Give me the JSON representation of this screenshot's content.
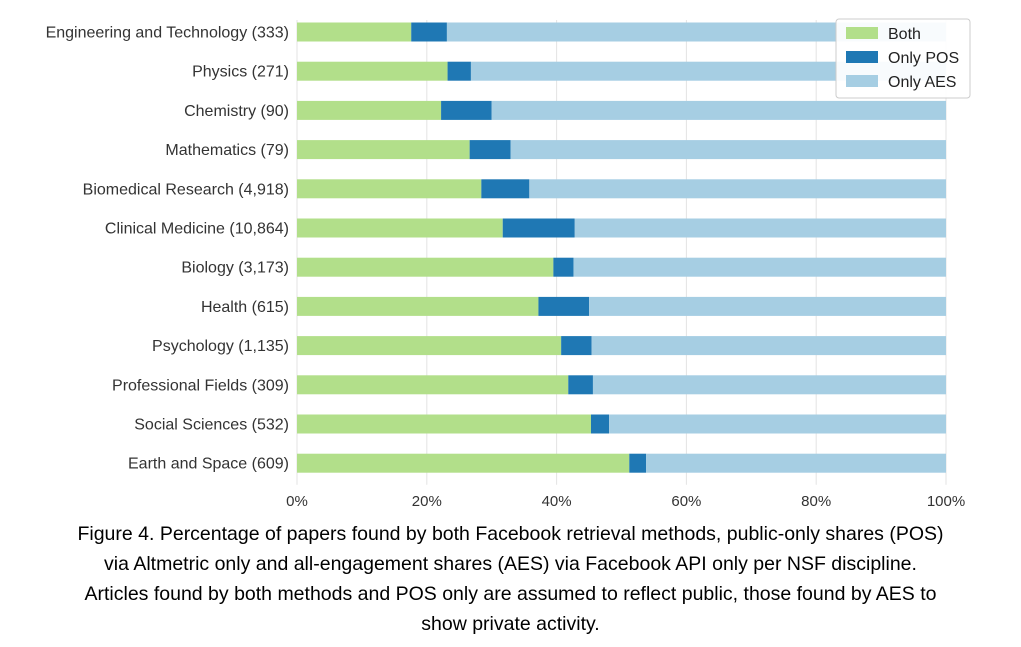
{
  "chart_data": {
    "type": "bar",
    "orientation": "horizontal",
    "stacked": true,
    "normalized": true,
    "categories": [
      "Engineering and Technology (333)",
      "Physics (271)",
      "Chemistry (90)",
      "Mathematics (79)",
      "Biomedical Research (4,918)",
      "Clinical Medicine (10,864)",
      "Biology (3,173)",
      "Health (615)",
      "Psychology (1,135)",
      "Professional Fields (309)",
      "Social Sciences (532)",
      "Earth and Space (609)"
    ],
    "series": [
      {
        "name": "Both",
        "color": "#b2df8a",
        "values": [
          17.6,
          23.2,
          22.2,
          26.6,
          28.4,
          31.7,
          39.5,
          37.2,
          40.7,
          41.8,
          45.3,
          51.2
        ]
      },
      {
        "name": "Only POS",
        "color": "#1f78b4",
        "values": [
          5.5,
          3.6,
          7.8,
          6.3,
          7.4,
          11.1,
          3.1,
          7.8,
          4.7,
          3.8,
          2.8,
          2.6
        ]
      },
      {
        "name": "Only AES",
        "color": "#a6cee3",
        "values": [
          76.9,
          73.2,
          70.0,
          67.1,
          64.2,
          57.2,
          57.4,
          55.0,
          54.6,
          54.4,
          51.9,
          46.2
        ]
      }
    ],
    "xlim": [
      0,
      100
    ],
    "xticks": [
      "0%",
      "20%",
      "40%",
      "60%",
      "80%",
      "100%"
    ],
    "grid": "vertical",
    "legend_position": "top-right",
    "title": "",
    "xlabel": "",
    "ylabel": ""
  },
  "caption": {
    "lines": [
      "Figure 4.  Percentage of papers found by both Facebook retrieval methods, public-only shares (POS)",
      "via Altmetric only and all-engagement shares (AES) via Facebook API only per NSF discipline.",
      "Articles found by both methods and POS only are assumed to reflect public, those found by AES to",
      "show private activity."
    ]
  }
}
